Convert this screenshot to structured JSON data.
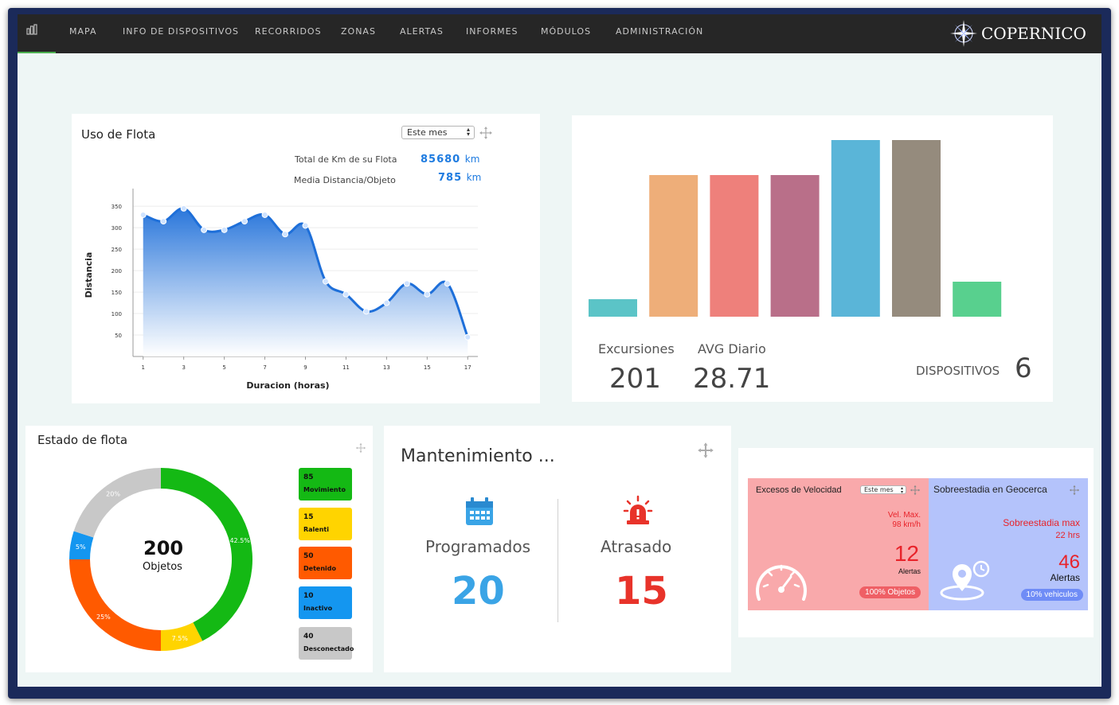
{
  "nav": {
    "items": [
      "MAPA",
      "INFO DE DISPOSITIVOS",
      "RECORRIDOS",
      "ZONAS",
      "ALERTAS",
      "INFORMES",
      "MÓDULOS",
      "ADMINISTRACIÓN"
    ],
    "brand": "COPERNICO",
    "active_icon": "bar-chart-icon"
  },
  "uso_flota": {
    "title": "Uso de Flota",
    "period": "Este mes",
    "total_label": "Total de Km de su Flota",
    "total_value": "85680",
    "total_unit": "km",
    "media_label": "Media Distancia/Objeto",
    "media_value": "785",
    "media_unit": "km"
  },
  "chart_data": [
    {
      "type": "area",
      "title": "",
      "xlabel": "Duracion (horas)",
      "ylabel": "Distancia",
      "x_ticks": [
        "1",
        "3",
        "5",
        "7",
        "9",
        "11",
        "13",
        "15",
        "17"
      ],
      "y_ticks": [
        "50",
        "100",
        "150",
        "200",
        "250",
        "300",
        "350"
      ],
      "ylim": [
        0,
        380
      ],
      "xlim": [
        0.5,
        17.5
      ],
      "x": [
        1,
        2,
        3,
        4,
        5,
        6,
        7,
        8,
        9,
        10,
        11,
        12,
        13,
        14,
        15,
        16,
        17
      ],
      "y": [
        330,
        315,
        345,
        295,
        295,
        315,
        330,
        285,
        305,
        175,
        145,
        105,
        125,
        170,
        145,
        170,
        45
      ],
      "color": "#1e6fd9"
    },
    {
      "type": "bar",
      "categories": [
        "",
        "",
        "",
        "",
        "",
        "",
        ""
      ],
      "values": [
        22,
        178,
        178,
        178,
        222,
        222,
        44
      ],
      "colors": [
        "#5bc4c7",
        "#eeae79",
        "#ee807b",
        "#b96f89",
        "#5ab5d8",
        "#958b7d",
        "#58d08e"
      ],
      "ylim": [
        0,
        222
      ]
    },
    {
      "type": "pie",
      "title": "Estado de flota",
      "center_value": "200",
      "center_label": "Objetos",
      "slices": [
        {
          "label": "Movimiento",
          "count": 85,
          "percent": 42.5,
          "color": "#14b914"
        },
        {
          "label": "Ralenti",
          "count": 15,
          "percent": 7.5,
          "color": "#ffd400"
        },
        {
          "label": "Detenido",
          "count": 50,
          "percent": 25,
          "color": "#ff5a00"
        },
        {
          "label": "Inactivo",
          "count": 10,
          "percent": 5,
          "color": "#1496f0"
        },
        {
          "label": "Desconectado",
          "count": 40,
          "percent": 20,
          "color": "#c8c8c8"
        }
      ]
    }
  ],
  "excursiones": {
    "excursiones_label": "Excursiones",
    "excursiones_value": "201",
    "avg_label": "AVG Diario",
    "avg_value": "28.71",
    "dispositivos_label": "DISPOSITIVOS",
    "dispositivos_value": "6"
  },
  "estado": {
    "title": "Estado de flota",
    "center_value": "200",
    "center_label": "Objetos",
    "percent_labels": [
      "42.5%",
      "7.5%",
      "25%",
      "5%",
      "20%"
    ],
    "legend": [
      {
        "count": "85",
        "label": "Movimiento",
        "color": "#14b914"
      },
      {
        "count": "15",
        "label": "Ralenti",
        "color": "#ffd400"
      },
      {
        "count": "50",
        "label": "Detenido",
        "color": "#ff5a00"
      },
      {
        "count": "10",
        "label": "Inactivo",
        "color": "#1496f0"
      },
      {
        "count": "40",
        "label": "Desconectado",
        "color": "#c8c8c8"
      }
    ]
  },
  "mantenimiento": {
    "title": "Mantenimiento ...",
    "programados_label": "Programados",
    "programados_value": "20",
    "programados_color": "#3aa4e6",
    "atrasado_label": "Atrasado",
    "atrasado_value": "15",
    "atrasado_color": "#e8332a"
  },
  "velocidad": {
    "title": "Excesos de Velocidad",
    "period": "Este mes",
    "max_label": "Vel. Max.",
    "max_value": "98 km/h",
    "alerts_value": "12",
    "alerts_label": "Alertas",
    "pill": "100% Objetos",
    "bg": "#f9a9ab"
  },
  "geocerca": {
    "title": "Sobreestadia en Geocerca",
    "max_label": "Sobreestadia max",
    "max_value": "22 hrs",
    "alerts_value": "46",
    "alerts_label": "Alertas",
    "pill": "10% vehiculos",
    "bg": "#b4c3fb"
  }
}
